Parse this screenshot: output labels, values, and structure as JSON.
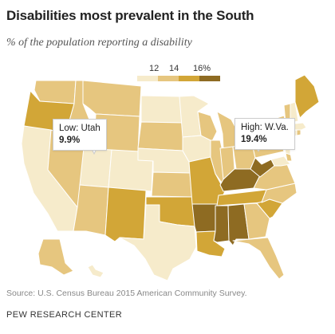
{
  "header": {
    "title": "Disabilities most prevalent in the South",
    "subtitle": "% of the population reporting a disability"
  },
  "legend": {
    "labels": [
      "12",
      "14",
      "16%"
    ],
    "colors": [
      "#f6ebcb",
      "#e6c67f",
      "#d2a637",
      "#8e6b22"
    ]
  },
  "callouts": {
    "low": {
      "label": "Low: Utah",
      "value": "9.9%"
    },
    "high": {
      "label": "High: W.Va.",
      "value": "19.4%"
    }
  },
  "footer": {
    "source": "Source: U.S. Census Bureau 2015 American Community Survey.",
    "org": "PEW RESEARCH CENTER"
  },
  "colors": {
    "outline": "#ffffff",
    "callout_border": "#cccccc"
  }
}
